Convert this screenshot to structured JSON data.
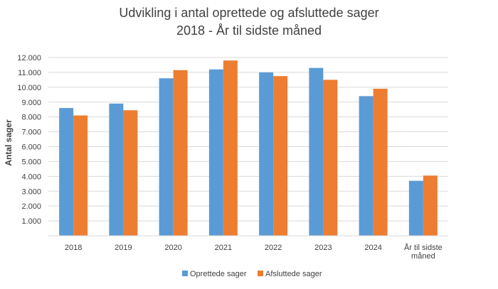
{
  "chart_data": {
    "type": "bar",
    "title": "Udvikling i antal oprettede og afsluttede sager",
    "subtitle": "2018 - År til sidste måned",
    "ylabel": "Antal sager",
    "xlabel": "",
    "categories": [
      "2018",
      "2019",
      "2020",
      "2021",
      "2022",
      "2023",
      "2024",
      "År til sidste|måned"
    ],
    "series": [
      {
        "name": "Oprettede sager",
        "color": "#5b9bd5",
        "values": [
          8600,
          8900,
          10600,
          11200,
          11000,
          11300,
          9400,
          3700
        ]
      },
      {
        "name": "Afsluttede sager",
        "color": "#ed7d31",
        "values": [
          8100,
          8450,
          11150,
          11800,
          10750,
          10500,
          9900,
          4050
        ]
      }
    ],
    "ylim": [
      0,
      12000
    ],
    "yticks": [
      "1.000",
      "2.000",
      "3.000",
      "4.000",
      "5.000",
      "6.000",
      "7.000",
      "8.000",
      "9.000",
      "10.000",
      "11.000",
      "12.000"
    ],
    "ytick_values": [
      1000,
      2000,
      3000,
      4000,
      5000,
      6000,
      7000,
      8000,
      9000,
      10000,
      11000,
      12000
    ],
    "grid": true,
    "legend_position": "bottom"
  }
}
